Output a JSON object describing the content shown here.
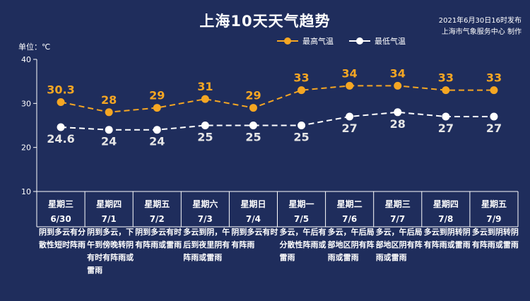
{
  "header": {
    "title": "上海10天天气趋势",
    "publish_line1": "2021年6月30日16时发布",
    "publish_line2": "上海市气象服务中心 制作",
    "unit": "单位：℃"
  },
  "colors": {
    "background": "#1f2d5c",
    "high": "#f5a623",
    "low": "#ffffff",
    "low_label": "#e6e6e6",
    "axis": "#ffffff"
  },
  "chart_data": {
    "type": "line",
    "title": "上海10天天气趋势",
    "ylabel": "单位：℃",
    "ylim": [
      10,
      40
    ],
    "yticks": [
      10,
      20,
      30,
      40
    ],
    "grid": false,
    "legend_position": "top-right",
    "categories": [
      {
        "weekday": "星期三",
        "date": "6/30"
      },
      {
        "weekday": "星期四",
        "date": "7/1"
      },
      {
        "weekday": "星期五",
        "date": "7/2"
      },
      {
        "weekday": "星期六",
        "date": "7/3"
      },
      {
        "weekday": "星期日",
        "date": "7/4"
      },
      {
        "weekday": "星期一",
        "date": "7/5"
      },
      {
        "weekday": "星期二",
        "date": "7/6"
      },
      {
        "weekday": "星期三",
        "date": "7/7"
      },
      {
        "weekday": "星期四",
        "date": "7/8"
      },
      {
        "weekday": "星期五",
        "date": "7/9"
      }
    ],
    "series": [
      {
        "name": "最高气温",
        "values": [
          30.3,
          28,
          29,
          31,
          29,
          33,
          34,
          34,
          33,
          33
        ],
        "labels": [
          "30.3",
          "28",
          "29",
          "31",
          "29",
          "33",
          "34",
          "34",
          "33",
          "33"
        ]
      },
      {
        "name": "最低气温",
        "values": [
          24.6,
          24,
          24,
          25,
          25,
          25,
          27,
          28,
          27,
          27
        ],
        "labels": [
          "24.6",
          "24",
          "24",
          "25",
          "25",
          "25",
          "27",
          "28",
          "27",
          "27"
        ]
      }
    ],
    "weather": [
      "阴到多云有分散性短时阵雨",
      "阴到多云，下午到傍晚转阴有时有阵雨或雷雨",
      "阴到多云有时有阵雨或雷雨",
      "多云到阴，午后到夜里阴有阵雨或雷雨",
      "阴到多云有时有阵雨",
      "多云，午后有分散性阵雨或雷雨",
      "多云，午后局部地区阴有阵雨或雷雨",
      "多云，午后局部地区阴有阵雨或雷雨",
      "多云到阴转阴有阵雨或雷雨",
      "多云到阴转阴有阵雨或雷雨"
    ]
  }
}
